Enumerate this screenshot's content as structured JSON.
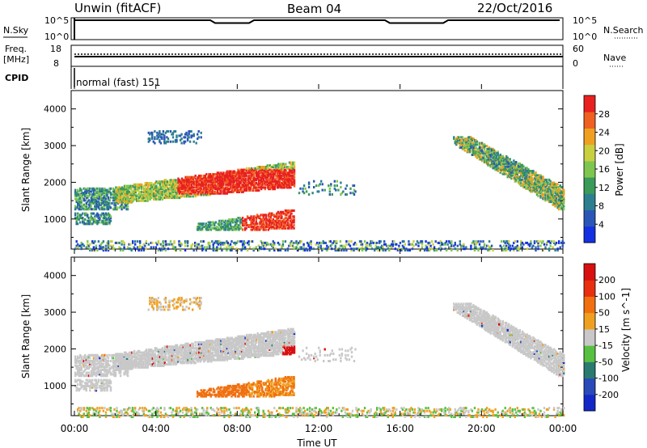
{
  "header": {
    "station": "Unwin (fitACF)",
    "beam": "Beam 04",
    "date": "22/Oct/2016"
  },
  "nsky_panel": {
    "left_label": "N.Sky",
    "right_label": "N.Search",
    "ticks_top": "10^5",
    "ticks_bottom": "10^0"
  },
  "freq_panel": {
    "left_label_1": "Freq.",
    "left_label_2": "[MHz]",
    "left_tick_top": "18",
    "left_tick_bottom": "8",
    "right_label": "Nave",
    "right_tick_top": "60",
    "right_tick_bottom": "0"
  },
  "cpid_panel": {
    "label": "CPID",
    "value": "normal (fast) 151"
  },
  "chart_data": [
    {
      "type": "heatmap",
      "name": "power",
      "ylabel": "Slant Range [km]",
      "ylim": [
        180,
        4500
      ],
      "yticks": [
        1000,
        2000,
        3000,
        4000
      ],
      "colorbar": {
        "label": "Power [dB]",
        "range": [
          0,
          32
        ],
        "ticks": [
          4,
          8,
          12,
          16,
          20,
          24,
          28
        ],
        "colors": [
          "#1530e0",
          "#2a56b8",
          "#2d7f8f",
          "#3a9a5a",
          "#7ec650",
          "#c8d040",
          "#f0a020",
          "#f06020",
          "#e82020"
        ]
      }
    },
    {
      "type": "heatmap",
      "name": "velocity",
      "ylabel": "Slant Range [km]",
      "xlabel": "Time UT",
      "ylim": [
        180,
        4500
      ],
      "yticks": [
        1000,
        2000,
        3000,
        4000
      ],
      "xticks": [
        "00:00",
        "04:00",
        "08:00",
        "12:00",
        "16:00",
        "20:00",
        "00:00"
      ],
      "colorbar": {
        "label": "Velocity [m s^-1]",
        "ticks": [
          "200",
          "100",
          "50",
          "15",
          "-15",
          "-50",
          "-100",
          "-200"
        ],
        "colors": [
          "#1428c8",
          "#2a4ab8",
          "#2a7a70",
          "#58c040",
          "#c8c8c8",
          "#f0a020",
          "#f07010",
          "#e83010",
          "#d81010"
        ]
      }
    }
  ]
}
